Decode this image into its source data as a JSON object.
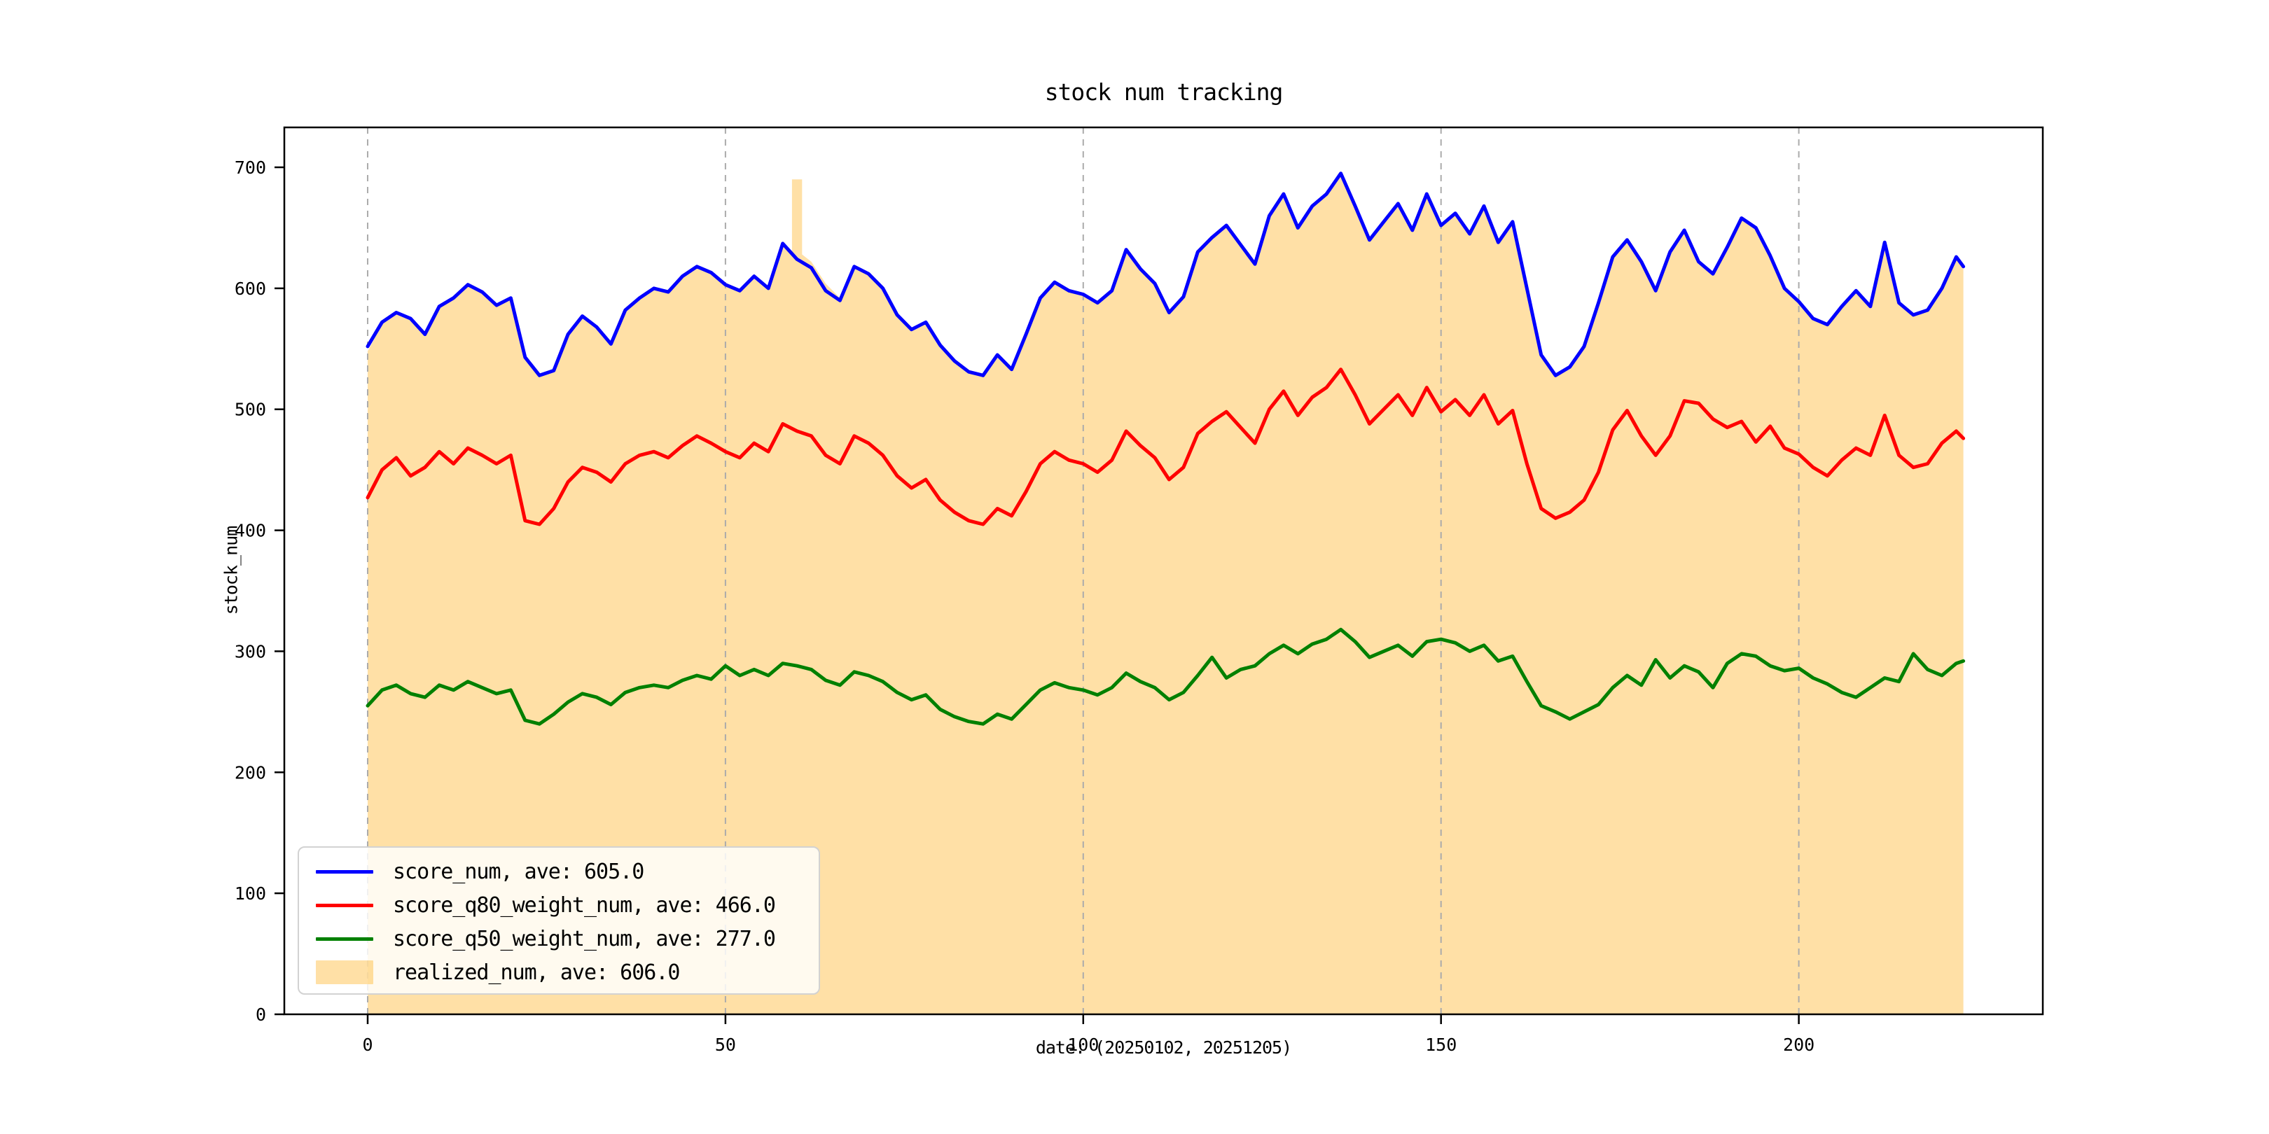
{
  "chart_data": {
    "type": "line+area",
    "title": "stock num tracking",
    "xlabel": "date: (20250102, 20251205)",
    "ylabel": "stock_num",
    "xlim": [
      -11.65,
      234.1
    ],
    "ylim": [
      0,
      733
    ],
    "xticks": [
      0,
      50,
      100,
      150,
      200
    ],
    "yticks": [
      0,
      100,
      200,
      300,
      400,
      500,
      600,
      700
    ],
    "grid": {
      "axis": "x",
      "style": "dashed",
      "color": "#ababab"
    },
    "legend_position": "lower-left",
    "x": [
      0,
      2,
      4,
      6,
      8,
      10,
      12,
      14,
      16,
      18,
      20,
      22,
      24,
      26,
      28,
      30,
      32,
      34,
      36,
      38,
      40,
      42,
      44,
      46,
      48,
      50,
      52,
      54,
      56,
      58,
      60,
      62,
      64,
      66,
      68,
      70,
      72,
      74,
      76,
      78,
      80,
      82,
      84,
      86,
      88,
      90,
      92,
      94,
      96,
      98,
      100,
      102,
      104,
      106,
      108,
      110,
      112,
      114,
      116,
      118,
      120,
      122,
      124,
      126,
      128,
      130,
      132,
      134,
      136,
      138,
      140,
      142,
      144,
      146,
      148,
      150,
      152,
      154,
      156,
      158,
      160,
      162,
      164,
      166,
      168,
      170,
      172,
      174,
      176,
      178,
      180,
      182,
      184,
      186,
      188,
      190,
      192,
      194,
      196,
      198,
      200,
      202,
      204,
      206,
      208,
      210,
      212,
      214,
      216,
      218,
      220,
      222,
      223
    ],
    "series": [
      {
        "name": "score_num, ave: 605.0",
        "color": "#0000ff",
        "type": "line",
        "values": [
          552,
          572,
          580,
          575,
          562,
          585,
          592,
          603,
          597,
          586,
          592,
          543,
          528,
          532,
          562,
          577,
          568,
          554,
          582,
          592,
          600,
          597,
          610,
          618,
          613,
          603,
          598,
          610,
          600,
          637,
          624,
          617,
          598,
          590,
          618,
          612,
          600,
          578,
          566,
          572,
          553,
          540,
          531,
          528,
          545,
          533,
          562,
          592,
          605,
          598,
          595,
          588,
          598,
          632,
          616,
          604,
          580,
          593,
          630,
          642,
          652,
          636,
          620,
          660,
          678,
          650,
          668,
          678,
          695,
          668,
          640,
          655,
          670,
          648,
          678,
          652,
          662,
          645,
          668,
          638,
          655,
          600,
          545,
          528,
          535,
          552,
          588,
          626,
          640,
          622,
          598,
          630,
          648,
          622,
          612,
          634,
          658,
          650,
          627,
          600,
          589,
          575,
          570,
          585,
          598,
          585,
          638,
          588,
          578,
          582,
          600,
          626,
          618
        ]
      },
      {
        "name": "score_q80_weight_num, ave: 466.0",
        "color": "#ff0000",
        "type": "line",
        "values": [
          427,
          450,
          460,
          445,
          452,
          465,
          455,
          468,
          462,
          455,
          462,
          408,
          405,
          418,
          440,
          452,
          448,
          440,
          455,
          462,
          465,
          460,
          470,
          478,
          472,
          465,
          460,
          472,
          465,
          488,
          482,
          478,
          462,
          455,
          478,
          472,
          462,
          445,
          435,
          442,
          425,
          415,
          408,
          405,
          418,
          412,
          432,
          455,
          465,
          458,
          455,
          448,
          458,
          482,
          470,
          460,
          442,
          452,
          480,
          490,
          498,
          485,
          472,
          500,
          515,
          495,
          510,
          518,
          533,
          512,
          488,
          500,
          512,
          495,
          518,
          498,
          508,
          495,
          512,
          488,
          499,
          455,
          418,
          410,
          415,
          425,
          448,
          483,
          499,
          478,
          462,
          478,
          507,
          505,
          492,
          485,
          490,
          473,
          486,
          468,
          463,
          452,
          445,
          458,
          468,
          462,
          495,
          462,
          452,
          455,
          472,
          482,
          476
        ]
      },
      {
        "name": "score_q50_weight_num, ave: 277.0",
        "color": "#008000",
        "type": "line",
        "values": [
          255,
          268,
          272,
          265,
          262,
          272,
          268,
          275,
          270,
          265,
          268,
          243,
          240,
          248,
          258,
          265,
          262,
          256,
          266,
          270,
          272,
          270,
          276,
          280,
          277,
          288,
          280,
          285,
          280,
          290,
          288,
          285,
          276,
          272,
          283,
          280,
          275,
          266,
          260,
          264,
          252,
          246,
          242,
          240,
          248,
          244,
          256,
          268,
          274,
          270,
          268,
          264,
          270,
          282,
          275,
          270,
          260,
          266,
          280,
          295,
          278,
          285,
          288,
          298,
          305,
          298,
          306,
          310,
          318,
          308,
          295,
          300,
          305,
          296,
          308,
          310,
          307,
          300,
          305,
          292,
          296,
          275,
          255,
          250,
          244,
          250,
          256,
          270,
          280,
          272,
          293,
          278,
          288,
          283,
          270,
          290,
          298,
          296,
          288,
          284,
          286,
          278,
          273,
          266,
          262,
          270,
          278,
          275,
          298,
          285,
          280,
          290,
          292
        ]
      },
      {
        "name": "realized_num, ave: 606.0",
        "color": "rgba(255,165,0,0.35)",
        "type": "area",
        "spike": {
          "x": 60,
          "value": 690,
          "width": 1.4
        },
        "values": [
          548,
          570,
          580,
          575,
          564,
          585,
          592,
          603,
          597,
          586,
          592,
          543,
          528,
          532,
          562,
          577,
          568,
          554,
          582,
          592,
          600,
          597,
          610,
          618,
          613,
          603,
          598,
          610,
          600,
          635,
          628,
          622,
          604,
          592,
          618,
          612,
          600,
          578,
          566,
          572,
          553,
          540,
          531,
          528,
          545,
          533,
          562,
          592,
          605,
          598,
          595,
          588,
          598,
          632,
          616,
          604,
          580,
          593,
          630,
          642,
          652,
          636,
          620,
          660,
          678,
          650,
          668,
          678,
          693,
          668,
          640,
          655,
          670,
          648,
          680,
          652,
          662,
          645,
          668,
          638,
          655,
          600,
          545,
          528,
          535,
          552,
          588,
          626,
          640,
          622,
          598,
          630,
          648,
          622,
          612,
          634,
          658,
          650,
          627,
          600,
          589,
          575,
          570,
          585,
          598,
          585,
          636,
          588,
          578,
          582,
          600,
          624,
          618
        ]
      }
    ]
  }
}
